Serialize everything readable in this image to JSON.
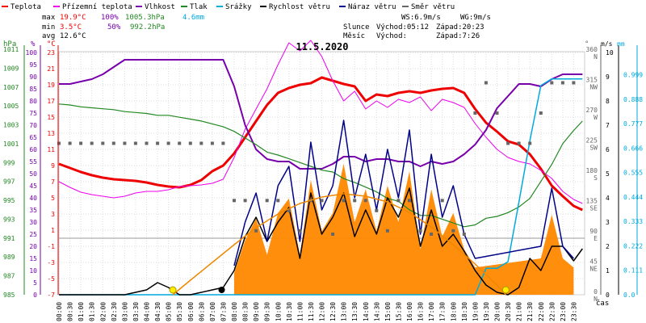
{
  "chart_data": {
    "type": "line",
    "title": "11.5.2020",
    "xlabel": "čas",
    "x_ticks": [
      "00:00",
      "00:30",
      "01:00",
      "01:30",
      "02:00",
      "02:30",
      "03:00",
      "03:30",
      "04:00",
      "04:30",
      "05:00",
      "05:30",
      "06:00",
      "06:30",
      "07:00",
      "07:30",
      "08:00",
      "08:30",
      "09:00",
      "09:30",
      "10:00",
      "10:30",
      "11:00",
      "11:30",
      "12:00",
      "12:30",
      "13:00",
      "13:30",
      "14:00",
      "14:30",
      "15:00",
      "15:30",
      "16:00",
      "16:30",
      "17:00",
      "17:30",
      "18:00",
      "18:30",
      "19:00",
      "19:30",
      "20:00",
      "20:30",
      "21:00",
      "21:30",
      "22:00",
      "22:30",
      "23:00",
      "23:30"
    ],
    "legend": [
      {
        "label": "Teplota",
        "color": "#ee0000"
      },
      {
        "label": "Přízemní teplota",
        "color": "#ee00ee"
      },
      {
        "label": "Vlhkost",
        "color": "#7700aa"
      },
      {
        "label": "Tlak",
        "color": "#228822"
      },
      {
        "label": "Srážky",
        "color": "#00aadd"
      },
      {
        "label": "Rychlost větru",
        "color": "#000000"
      },
      {
        "label": "Náraz větru",
        "color": "#000088"
      },
      {
        "label": "Směr větru",
        "color": "#666666"
      }
    ],
    "stats": {
      "max_label": "max",
      "max_temp": "19.9°C",
      "max_hum": "100%",
      "max_press": "1005.3hPa",
      "max_rain": "4.6mm",
      "min_label": "min",
      "min_temp": "3.5°C",
      "min_hum": "50%",
      "min_press": "992.2hPa",
      "avg_label": "avg",
      "avg_temp": "12.6°C"
    },
    "info": {
      "ws": "WS:6.9m/s",
      "wg": "WG:9m/s",
      "sun_label": "Slunce",
      "sun_rise": "Východ:05:12",
      "sun_set": "Západ:20:23",
      "moon_label": "Měsíc",
      "moon_rise": "Východ:",
      "moon_set": "Západ:7:26"
    },
    "axes": {
      "press_unit": "hPa",
      "pct_unit": "%",
      "temp_unit": "°C",
      "deg_unit": "°",
      "ms_unit": "m/s",
      "mm_unit": "mm",
      "press_ticks": [
        "985",
        "987",
        "989",
        "991",
        "993",
        "995",
        "997",
        "999",
        "1001",
        "1003",
        "1005",
        "1007",
        "1009",
        "1011"
      ],
      "pct_ticks": [
        "0",
        "5",
        "10",
        "15",
        "20",
        "25",
        "30",
        "35",
        "40",
        "45",
        "50",
        "55",
        "60",
        "65",
        "70",
        "75",
        "80",
        "85",
        "90",
        "95",
        "100"
      ],
      "temp_ticks": [
        "-7",
        "-5",
        "-3",
        "-1",
        "1",
        "3",
        "5",
        "7",
        "9",
        "11",
        "13",
        "15",
        "17",
        "19",
        "21",
        "23"
      ],
      "dir_ticks": [
        {
          "deg": "0",
          "dir": "N"
        },
        {
          "deg": "45",
          "dir": "NE"
        },
        {
          "deg": "90",
          "dir": "E"
        },
        {
          "deg": "135",
          "dir": "SE"
        },
        {
          "deg": "180",
          "dir": "S"
        },
        {
          "deg": "225",
          "dir": "SW"
        },
        {
          "deg": "270",
          "dir": "W"
        },
        {
          "deg": "315",
          "dir": "NW"
        },
        {
          "deg": "360",
          "dir": "N"
        }
      ],
      "ms_ticks": [
        "0",
        "1",
        "2",
        "3",
        "4",
        "5",
        "6",
        "7",
        "8",
        "9",
        "10"
      ],
      "mm_ticks": [
        "0.0",
        "0.111",
        "0.222",
        "0.333",
        "0.444",
        "0.555",
        "0.666",
        "0.777",
        "0.888",
        "0.999"
      ]
    },
    "series": [
      {
        "name": "Teplota",
        "color": "#ee0000",
        "scale": "temp",
        "x": [
          0,
          0.5,
          1,
          1.5,
          2,
          2.5,
          3,
          3.5,
          4,
          4.5,
          5,
          5.5,
          6,
          6.5,
          7,
          7.5,
          8,
          8.5,
          9,
          9.5,
          10,
          10.5,
          11,
          11.5,
          12,
          12.5,
          13,
          13.5,
          14,
          14.5,
          15,
          15.5,
          16,
          16.5,
          17,
          17.5,
          18,
          18.5,
          19,
          19.5,
          20,
          20.5,
          21,
          21.5,
          22,
          22.5,
          23,
          23.5,
          23.9
        ],
        "y": [
          9.2,
          8.7,
          8.2,
          7.8,
          7.5,
          7.3,
          7.2,
          7.1,
          6.9,
          6.6,
          6.4,
          6.3,
          6.6,
          7.2,
          8.3,
          9.0,
          10.5,
          12.5,
          14.5,
          16.5,
          18.0,
          18.6,
          19.0,
          19.2,
          19.9,
          19.5,
          19.1,
          18.8,
          17.0,
          17.8,
          17.6,
          18.0,
          18.2,
          18.0,
          18.3,
          18.5,
          18.6,
          18.0,
          16.0,
          14.3,
          13.2,
          12.0,
          11.6,
          10.4,
          8.6,
          6.5,
          5.2,
          4.0,
          3.5
        ]
      },
      {
        "name": "Přízemní teplota",
        "color": "#ee00ee",
        "scale": "temp",
        "x": [
          0,
          0.5,
          1,
          1.5,
          2,
          2.5,
          3,
          3.5,
          4,
          4.5,
          5,
          5.5,
          6,
          6.5,
          7,
          7.5,
          8,
          8.5,
          9,
          9.5,
          10,
          10.5,
          11,
          11.5,
          12,
          12.5,
          13,
          13.5,
          14,
          14.5,
          15,
          15.5,
          16,
          16.5,
          17,
          17.5,
          18,
          18.5,
          19,
          19.5,
          20,
          20.5,
          21,
          21.5,
          22,
          22.5,
          23,
          23.5,
          23.9
        ],
        "y": [
          7.0,
          6.3,
          5.7,
          5.4,
          5.2,
          5.0,
          5.2,
          5.6,
          5.8,
          5.8,
          6.0,
          6.4,
          6.5,
          6.6,
          6.8,
          7.3,
          10.0,
          13.5,
          16.0,
          18.5,
          21.5,
          24.2,
          23.2,
          24.5,
          22.5,
          19.5,
          17.0,
          18.2,
          16.0,
          17.0,
          16.2,
          17.2,
          16.8,
          17.5,
          15.8,
          17.2,
          16.8,
          16.2,
          14.2,
          12.5,
          11.0,
          10.0,
          9.5,
          9.2,
          8.4,
          7.4,
          5.8,
          4.8,
          4.3
        ]
      },
      {
        "name": "Vlhkost",
        "color": "#7700aa",
        "scale": "pct",
        "x": [
          0,
          0.5,
          1,
          1.5,
          2,
          2.5,
          3,
          3.5,
          4,
          4.5,
          5,
          5.5,
          6,
          6.5,
          7,
          7.5,
          8,
          8.5,
          9,
          9.5,
          10,
          10.5,
          11,
          11.5,
          12,
          12.5,
          13,
          13.5,
          14,
          14.5,
          15,
          15.5,
          16,
          16.5,
          17,
          17.5,
          18,
          18.5,
          19,
          19.5,
          20,
          20.5,
          21,
          21.5,
          22,
          22.5,
          23,
          23.5,
          23.9
        ],
        "y": [
          87,
          87,
          88,
          89,
          91,
          94,
          97,
          97,
          97,
          97,
          97,
          97,
          97,
          97,
          97,
          97,
          86,
          70,
          60,
          56,
          55,
          55,
          52,
          52,
          52,
          54,
          57,
          57,
          55,
          56,
          56,
          55,
          55,
          53,
          55,
          54,
          55,
          58,
          62,
          68,
          77,
          82,
          87,
          87,
          86,
          89,
          91,
          91,
          91
        ]
      },
      {
        "name": "Tlak",
        "color": "#228822",
        "scale": "press",
        "x": [
          0,
          0.5,
          1,
          1.5,
          2,
          2.5,
          3,
          3.5,
          4,
          4.5,
          5,
          5.5,
          6,
          6.5,
          7,
          7.5,
          8,
          8.5,
          9,
          9.5,
          10,
          10.5,
          11,
          11.5,
          12,
          12.5,
          13,
          13.5,
          14,
          14.5,
          15,
          15.5,
          16,
          16.5,
          17,
          17.5,
          18,
          18.5,
          19,
          19.5,
          20,
          20.5,
          21,
          21.5,
          22,
          22.5,
          23,
          23.5,
          23.9
        ],
        "y": [
          1005.2,
          1005.1,
          1004.9,
          1004.8,
          1004.7,
          1004.6,
          1004.4,
          1004.3,
          1004.2,
          1004.0,
          1004.0,
          1003.8,
          1003.6,
          1003.4,
          1003.1,
          1002.8,
          1002.3,
          1001.6,
          1000.9,
          1000.1,
          999.8,
          999.4,
          999.0,
          998.6,
          998.2,
          998.0,
          997.3,
          996.9,
          996.4,
          995.9,
          995.2,
          994.9,
          994.0,
          993.4,
          993.4,
          993.0,
          992.6,
          992.2,
          992.4,
          993.1,
          993.3,
          993.7,
          994.3,
          995.2,
          997.0,
          998.8,
          1001.0,
          1002.4,
          1003.4
        ]
      },
      {
        "name": "Srážky",
        "color": "#00aadd",
        "scale": "mm",
        "x": [
          0,
          19,
          19.5,
          20,
          20.5,
          21,
          21.5,
          22,
          22.5,
          23,
          23.9
        ],
        "y": [
          0,
          0,
          0.12,
          0.12,
          0.15,
          0.42,
          0.7,
          0.95,
          0.98,
          0.98,
          0.98
        ]
      },
      {
        "name": "Rychlost větru",
        "color": "#000000",
        "scale": "ms",
        "x": [
          0,
          3,
          4,
          4.5,
          5,
          5.5,
          6,
          7,
          7.5,
          8,
          8.5,
          9,
          9.5,
          10,
          10.5,
          11,
          11.5,
          12,
          12.5,
          13,
          13.5,
          14,
          14.5,
          15,
          15.5,
          16,
          16.5,
          17,
          17.5,
          18,
          18.5,
          19,
          19.5,
          20,
          20.5,
          21,
          21.5,
          22,
          22.5,
          23,
          23.5,
          23.9
        ],
        "y": [
          0,
          0,
          0.2,
          0.5,
          0.3,
          0,
          0,
          0.2,
          0.3,
          1.0,
          2.4,
          3.2,
          2.2,
          3.0,
          3.6,
          1.5,
          4.2,
          2.5,
          3.2,
          4.2,
          2.4,
          3.5,
          2.5,
          4.0,
          3.2,
          4.4,
          2.0,
          3.5,
          2.0,
          2.5,
          1.8,
          1.0,
          0.4,
          0.1,
          0,
          0.3,
          1.5,
          1.0,
          2.0,
          2.0,
          1.4,
          1.9
        ]
      },
      {
        "name": "Náraz větru",
        "color": "#000088",
        "scale": "ms",
        "x": [
          8,
          8.5,
          9,
          9.5,
          10,
          10.5,
          11,
          11.5,
          12,
          12.5,
          13,
          13.5,
          14,
          14.5,
          15,
          15.5,
          16,
          16.5,
          17,
          17.5,
          18,
          18.5,
          19,
          22,
          22.5,
          23,
          23.5
        ],
        "y": [
          1.2,
          3.0,
          4.2,
          2.2,
          4.5,
          5.3,
          2.2,
          6.3,
          3.5,
          4.5,
          7.2,
          4.0,
          5.8,
          3.5,
          6.0,
          4.0,
          6.8,
          2.5,
          5.8,
          3.2,
          4.5,
          2.5,
          1.5,
          2.0,
          4.4,
          2.0,
          1.5
        ]
      },
      {
        "name": "Směr větru",
        "color": "#666666",
        "scale": "dir",
        "x": [
          0,
          0.5,
          1,
          1.5,
          2,
          2.5,
          3,
          3.5,
          4,
          4.5,
          5,
          5.5,
          6,
          6.5,
          7,
          7.5,
          8,
          8.5,
          9,
          9.5,
          10,
          10.5,
          11,
          11.5,
          12,
          12.5,
          13,
          13.5,
          14,
          14.5,
          15,
          15.5,
          16,
          16.5,
          17,
          17.5,
          18,
          18.5,
          19,
          19.5,
          20,
          20.5,
          21,
          21.5,
          22,
          22.5,
          23,
          23.5
        ],
        "y": [
          225,
          225,
          225,
          225,
          225,
          225,
          225,
          225,
          225,
          225,
          225,
          225,
          225,
          225,
          225,
          225,
          140,
          140,
          95,
          140,
          140,
          125,
          95,
          140,
          140,
          90,
          140,
          140,
          140,
          125,
          95,
          140,
          140,
          95,
          90,
          140,
          95,
          90,
          270,
          315,
          270,
          225,
          225,
          225,
          270,
          315,
          315,
          315
        ]
      },
      {
        "name": "Průběh slunce",
        "color": "#ee8800",
        "scale": "temp",
        "x": [
          5.2,
          6,
          7,
          8,
          9,
          10,
          11,
          12,
          13,
          14,
          15,
          16,
          17,
          18,
          19,
          20,
          20.4
        ],
        "y": [
          -7,
          -5.2,
          -3.0,
          -0.8,
          1.3,
          3.0,
          4.3,
          5.1,
          5.5,
          5.2,
          4.5,
          3.2,
          1.4,
          -0.8,
          -3.2,
          -5.8,
          -7
        ]
      }
    ],
    "markers": {
      "sunrise_hour": 5.2,
      "sunset_hour": 20.4,
      "moonset_hour": 7.43
    }
  }
}
